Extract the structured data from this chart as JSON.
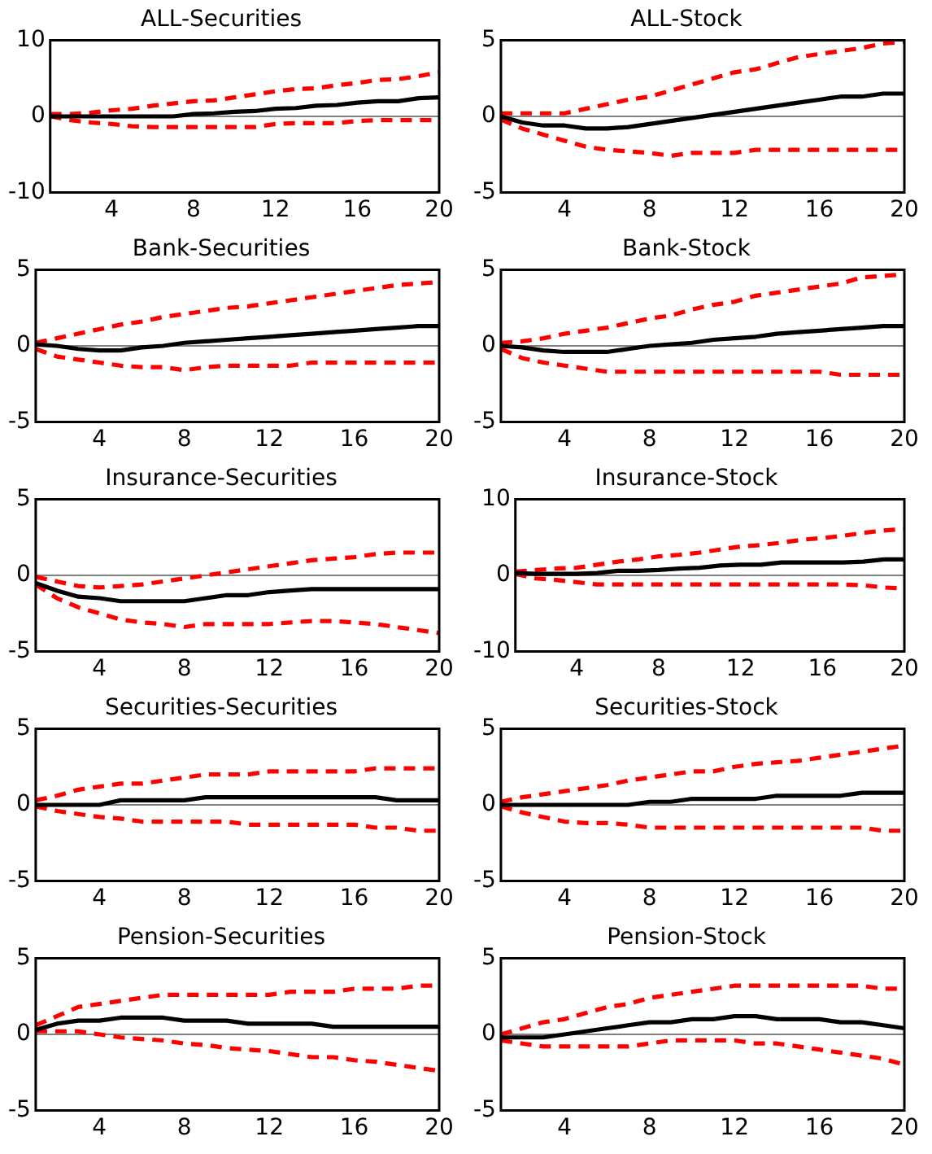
{
  "chart_data": [
    {
      "type": "line",
      "title": "ALL-Securities",
      "x": [
        1,
        2,
        3,
        4,
        5,
        6,
        7,
        8,
        9,
        10,
        11,
        12,
        13,
        14,
        15,
        16,
        17,
        18,
        19,
        20
      ],
      "xlim": [
        1,
        20
      ],
      "xticks": [
        4,
        8,
        12,
        16,
        20
      ],
      "ylim": [
        -10,
        10
      ],
      "yticks": [
        -10,
        0,
        10
      ],
      "grid": false,
      "legend": false,
      "marker": "none",
      "ref_lines": [
        {
          "axis": "y",
          "value": 0,
          "color": "#808080"
        }
      ],
      "series": [
        {
          "color": "#000000",
          "line_style": "solid",
          "values": [
            0,
            0,
            0,
            0,
            0,
            0,
            0,
            0.3,
            0.4,
            0.6,
            0.7,
            1,
            1.1,
            1.4,
            1.5,
            1.8,
            2,
            2,
            2.4,
            2.5
          ]
        },
        {
          "color": "#ff0000",
          "line_style": "dashed",
          "values": [
            0.3,
            0.3,
            0.5,
            0.8,
            1,
            1.4,
            1.7,
            2,
            2.1,
            2.5,
            2.9,
            3.3,
            3.6,
            3.7,
            4.1,
            4.4,
            4.8,
            4.9,
            5.3,
            5.8
          ]
        },
        {
          "color": "#ff0000",
          "line_style": "dashed",
          "values": [
            0,
            -0.5,
            -0.8,
            -1,
            -1.3,
            -1.4,
            -1.4,
            -1.4,
            -1.4,
            -1.4,
            -1.4,
            -1,
            -0.9,
            -0.9,
            -0.9,
            -0.6,
            -0.5,
            -0.5,
            -0.5,
            -0.5
          ]
        }
      ]
    },
    {
      "type": "line",
      "title": "ALL-Stock",
      "x": [
        1,
        2,
        3,
        4,
        5,
        6,
        7,
        8,
        9,
        10,
        11,
        12,
        13,
        14,
        15,
        16,
        17,
        18,
        19,
        20
      ],
      "xlim": [
        1,
        20
      ],
      "xticks": [
        4,
        8,
        12,
        16,
        20
      ],
      "ylim": [
        -5,
        5
      ],
      "yticks": [
        -5,
        0,
        5
      ],
      "grid": false,
      "legend": false,
      "marker": "none",
      "ref_lines": [
        {
          "axis": "y",
          "value": 0,
          "color": "#808080"
        }
      ],
      "series": [
        {
          "color": "#000000",
          "line_style": "solid",
          "values": [
            0,
            -0.4,
            -0.6,
            -0.6,
            -0.8,
            -0.8,
            -0.7,
            -0.5,
            -0.3,
            -0.1,
            0.1,
            0.3,
            0.5,
            0.7,
            0.9,
            1.1,
            1.3,
            1.3,
            1.5,
            1.5
          ]
        },
        {
          "color": "#ff0000",
          "line_style": "dashed",
          "values": [
            0.2,
            0.2,
            0.2,
            0.2,
            0.5,
            0.8,
            1.1,
            1.3,
            1.7,
            2.1,
            2.5,
            2.9,
            3.1,
            3.5,
            3.9,
            4.1,
            4.3,
            4.5,
            4.8,
            4.9
          ]
        },
        {
          "color": "#ff0000",
          "line_style": "dashed",
          "values": [
            -0.2,
            -0.8,
            -1.2,
            -1.6,
            -2,
            -2.2,
            -2.3,
            -2.4,
            -2.6,
            -2.4,
            -2.4,
            -2.4,
            -2.2,
            -2.2,
            -2.2,
            -2.2,
            -2.2,
            -2.2,
            -2.2,
            -2.2
          ]
        }
      ]
    },
    {
      "type": "line",
      "title": "Bank-Securities",
      "x": [
        1,
        2,
        3,
        4,
        5,
        6,
        7,
        8,
        9,
        10,
        11,
        12,
        13,
        14,
        15,
        16,
        17,
        18,
        19,
        20
      ],
      "xlim": [
        1,
        20
      ],
      "xticks": [
        4,
        8,
        12,
        16,
        20
      ],
      "ylim": [
        -5,
        5
      ],
      "yticks": [
        -5,
        0,
        5
      ],
      "grid": false,
      "legend": false,
      "marker": "none",
      "ref_lines": [
        {
          "axis": "y",
          "value": 0,
          "color": "#808080"
        }
      ],
      "series": [
        {
          "color": "#000000",
          "line_style": "solid",
          "values": [
            0.1,
            0,
            -0.2,
            -0.3,
            -0.3,
            -0.1,
            0,
            0.2,
            0.3,
            0.4,
            0.5,
            0.6,
            0.7,
            0.8,
            0.9,
            1,
            1.1,
            1.2,
            1.3,
            1.3
          ]
        },
        {
          "color": "#ff0000",
          "line_style": "dashed",
          "values": [
            0.2,
            0.5,
            0.8,
            1.1,
            1.4,
            1.6,
            1.9,
            2.1,
            2.3,
            2.5,
            2.6,
            2.8,
            3,
            3.2,
            3.4,
            3.6,
            3.8,
            4,
            4.1,
            4.2
          ]
        },
        {
          "color": "#ff0000",
          "line_style": "dashed",
          "values": [
            -0.2,
            -0.7,
            -0.9,
            -1.1,
            -1.3,
            -1.4,
            -1.4,
            -1.6,
            -1.4,
            -1.3,
            -1.3,
            -1.3,
            -1.3,
            -1.1,
            -1.1,
            -1.1,
            -1.1,
            -1.1,
            -1.1,
            -1.1
          ]
        }
      ]
    },
    {
      "type": "line",
      "title": "Bank-Stock",
      "x": [
        1,
        2,
        3,
        4,
        5,
        6,
        7,
        8,
        9,
        10,
        11,
        12,
        13,
        14,
        15,
        16,
        17,
        18,
        19,
        20
      ],
      "xlim": [
        1,
        20
      ],
      "xticks": [
        4,
        8,
        12,
        16,
        20
      ],
      "ylim": [
        -5,
        5
      ],
      "yticks": [
        -5,
        0,
        5
      ],
      "grid": false,
      "legend": false,
      "marker": "none",
      "ref_lines": [
        {
          "axis": "y",
          "value": 0,
          "color": "#808080"
        }
      ],
      "series": [
        {
          "color": "#000000",
          "line_style": "solid",
          "values": [
            0,
            -0.1,
            -0.3,
            -0.4,
            -0.4,
            -0.4,
            -0.2,
            0,
            0.1,
            0.2,
            0.4,
            0.5,
            0.6,
            0.8,
            0.9,
            1,
            1.1,
            1.2,
            1.3,
            1.3
          ]
        },
        {
          "color": "#ff0000",
          "line_style": "dashed",
          "values": [
            0.2,
            0.3,
            0.5,
            0.8,
            1,
            1.2,
            1.5,
            1.8,
            2,
            2.4,
            2.7,
            2.9,
            3.3,
            3.5,
            3.7,
            3.9,
            4.1,
            4.5,
            4.6,
            4.7
          ]
        },
        {
          "color": "#ff0000",
          "line_style": "dashed",
          "values": [
            -0.2,
            -0.8,
            -1.1,
            -1.3,
            -1.5,
            -1.7,
            -1.7,
            -1.7,
            -1.7,
            -1.7,
            -1.7,
            -1.7,
            -1.7,
            -1.7,
            -1.7,
            -1.7,
            -1.9,
            -1.9,
            -1.9,
            -1.9
          ]
        }
      ]
    },
    {
      "type": "line",
      "title": "Insurance-Securities",
      "x": [
        1,
        2,
        3,
        4,
        5,
        6,
        7,
        8,
        9,
        10,
        11,
        12,
        13,
        14,
        15,
        16,
        17,
        18,
        19,
        20
      ],
      "xlim": [
        1,
        20
      ],
      "xticks": [
        4,
        8,
        12,
        16,
        20
      ],
      "ylim": [
        -5,
        5
      ],
      "yticks": [
        -5,
        0,
        5
      ],
      "grid": false,
      "legend": false,
      "marker": "none",
      "ref_lines": [
        {
          "axis": "y",
          "value": 0,
          "color": "#808080"
        }
      ],
      "series": [
        {
          "color": "#000000",
          "line_style": "solid",
          "values": [
            -0.5,
            -1,
            -1.4,
            -1.5,
            -1.7,
            -1.7,
            -1.7,
            -1.7,
            -1.5,
            -1.3,
            -1.3,
            -1.1,
            -1,
            -0.9,
            -0.9,
            -0.9,
            -0.9,
            -0.9,
            -0.9,
            -0.9
          ]
        },
        {
          "color": "#ff0000",
          "line_style": "dashed",
          "values": [
            -0.1,
            -0.4,
            -0.7,
            -0.8,
            -0.7,
            -0.6,
            -0.4,
            -0.2,
            0,
            0.2,
            0.4,
            0.6,
            0.8,
            1,
            1.1,
            1.2,
            1.4,
            1.5,
            1.5,
            1.5
          ]
        },
        {
          "color": "#ff0000",
          "line_style": "dashed",
          "values": [
            -0.6,
            -1.5,
            -2.1,
            -2.5,
            -2.9,
            -3.1,
            -3.2,
            -3.4,
            -3.2,
            -3.2,
            -3.2,
            -3.2,
            -3.1,
            -3,
            -3,
            -3.1,
            -3.2,
            -3.4,
            -3.6,
            -3.8
          ]
        }
      ]
    },
    {
      "type": "line",
      "title": "Insurance-Stock",
      "x": [
        1,
        2,
        3,
        4,
        5,
        6,
        7,
        8,
        9,
        10,
        11,
        12,
        13,
        14,
        15,
        16,
        17,
        18,
        19,
        20
      ],
      "xlim": [
        1,
        20
      ],
      "xticks": [
        4,
        8,
        12,
        16,
        20
      ],
      "ylim": [
        -10,
        10
      ],
      "yticks": [
        -10,
        0,
        10
      ],
      "grid": false,
      "legend": false,
      "marker": "none",
      "ref_lines": [
        {
          "axis": "y",
          "value": 0,
          "color": "#808080"
        }
      ],
      "series": [
        {
          "color": "#000000",
          "line_style": "solid",
          "values": [
            0.3,
            0.2,
            0.2,
            0.2,
            0.3,
            0.6,
            0.6,
            0.7,
            0.9,
            1,
            1.3,
            1.4,
            1.4,
            1.7,
            1.7,
            1.7,
            1.7,
            1.8,
            2.1,
            2.1
          ]
        },
        {
          "color": "#ff0000",
          "line_style": "dashed",
          "values": [
            0.5,
            0.7,
            0.9,
            1,
            1.4,
            1.8,
            2.1,
            2.5,
            2.7,
            3,
            3.4,
            3.8,
            4,
            4.3,
            4.7,
            4.9,
            5.2,
            5.6,
            5.9,
            6.1
          ]
        },
        {
          "color": "#ff0000",
          "line_style": "dashed",
          "values": [
            0.2,
            -0.4,
            -0.6,
            -0.9,
            -1.2,
            -1.2,
            -1.2,
            -1.2,
            -1.2,
            -1.2,
            -1.2,
            -1.2,
            -1.2,
            -1.2,
            -1.2,
            -1.2,
            -1.2,
            -1.3,
            -1.6,
            -1.7
          ]
        }
      ]
    },
    {
      "type": "line",
      "title": "Securities-Securities",
      "x": [
        1,
        2,
        3,
        4,
        5,
        6,
        7,
        8,
        9,
        10,
        11,
        12,
        13,
        14,
        15,
        16,
        17,
        18,
        19,
        20
      ],
      "xlim": [
        1,
        20
      ],
      "xticks": [
        4,
        8,
        12,
        16,
        20
      ],
      "ylim": [
        -5,
        5
      ],
      "yticks": [
        -5,
        0,
        5
      ],
      "grid": false,
      "legend": false,
      "marker": "none",
      "ref_lines": [
        {
          "axis": "y",
          "value": 0,
          "color": "#808080"
        }
      ],
      "series": [
        {
          "color": "#000000",
          "line_style": "solid",
          "values": [
            0,
            0,
            0,
            0,
            0.3,
            0.3,
            0.3,
            0.3,
            0.5,
            0.5,
            0.5,
            0.5,
            0.5,
            0.5,
            0.5,
            0.5,
            0.5,
            0.3,
            0.3,
            0.3
          ]
        },
        {
          "color": "#ff0000",
          "line_style": "dashed",
          "values": [
            0.3,
            0.6,
            1,
            1.2,
            1.4,
            1.4,
            1.6,
            1.8,
            2,
            2,
            2,
            2.2,
            2.2,
            2.2,
            2.2,
            2.2,
            2.4,
            2.4,
            2.4,
            2.4
          ]
        },
        {
          "color": "#ff0000",
          "line_style": "dashed",
          "values": [
            -0.1,
            -0.4,
            -0.6,
            -0.8,
            -0.9,
            -1.1,
            -1.1,
            -1.1,
            -1.1,
            -1.1,
            -1.3,
            -1.3,
            -1.3,
            -1.3,
            -1.3,
            -1.3,
            -1.5,
            -1.5,
            -1.7,
            -1.7
          ]
        }
      ]
    },
    {
      "type": "line",
      "title": "Securities-Stock",
      "x": [
        1,
        2,
        3,
        4,
        5,
        6,
        7,
        8,
        9,
        10,
        11,
        12,
        13,
        14,
        15,
        16,
        17,
        18,
        19,
        20
      ],
      "xlim": [
        1,
        20
      ],
      "xticks": [
        4,
        8,
        12,
        16,
        20
      ],
      "ylim": [
        -5,
        5
      ],
      "yticks": [
        -5,
        0,
        5
      ],
      "grid": false,
      "legend": false,
      "marker": "none",
      "ref_lines": [
        {
          "axis": "y",
          "value": 0,
          "color": "#808080"
        }
      ],
      "series": [
        {
          "color": "#000000",
          "line_style": "solid",
          "values": [
            0,
            0,
            0,
            0,
            0,
            0,
            0,
            0.2,
            0.2,
            0.4,
            0.4,
            0.4,
            0.4,
            0.6,
            0.6,
            0.6,
            0.6,
            0.8,
            0.8,
            0.8
          ]
        },
        {
          "color": "#ff0000",
          "line_style": "dashed",
          "values": [
            0.2,
            0.5,
            0.7,
            0.9,
            1.1,
            1.3,
            1.6,
            1.8,
            2,
            2.2,
            2.2,
            2.5,
            2.7,
            2.8,
            2.9,
            3.1,
            3.3,
            3.5,
            3.7,
            3.9
          ]
        },
        {
          "color": "#ff0000",
          "line_style": "dashed",
          "values": [
            -0.1,
            -0.5,
            -0.8,
            -1.1,
            -1.2,
            -1.2,
            -1.3,
            -1.5,
            -1.5,
            -1.5,
            -1.5,
            -1.5,
            -1.5,
            -1.5,
            -1.5,
            -1.5,
            -1.5,
            -1.5,
            -1.7,
            -1.7
          ]
        }
      ]
    },
    {
      "type": "line",
      "title": "Pension-Securities",
      "x": [
        1,
        2,
        3,
        4,
        5,
        6,
        7,
        8,
        9,
        10,
        11,
        12,
        13,
        14,
        15,
        16,
        17,
        18,
        19,
        20
      ],
      "xlim": [
        1,
        20
      ],
      "xticks": [
        4,
        8,
        12,
        16,
        20
      ],
      "ylim": [
        -5,
        5
      ],
      "yticks": [
        -5,
        0,
        5
      ],
      "grid": false,
      "legend": false,
      "marker": "none",
      "ref_lines": [
        {
          "axis": "y",
          "value": 0,
          "color": "#808080"
        }
      ],
      "series": [
        {
          "color": "#000000",
          "line_style": "solid",
          "values": [
            0.3,
            0.7,
            0.9,
            0.9,
            1.1,
            1.1,
            1.1,
            0.9,
            0.9,
            0.9,
            0.7,
            0.7,
            0.7,
            0.7,
            0.5,
            0.5,
            0.5,
            0.5,
            0.5,
            0.5
          ]
        },
        {
          "color": "#ff0000",
          "line_style": "dashed",
          "values": [
            0.6,
            1.2,
            1.8,
            2,
            2.2,
            2.4,
            2.6,
            2.6,
            2.6,
            2.6,
            2.6,
            2.6,
            2.8,
            2.8,
            2.8,
            3,
            3,
            3,
            3.2,
            3.2
          ]
        },
        {
          "color": "#ff0000",
          "line_style": "dashed",
          "values": [
            0.2,
            0.2,
            0.2,
            0,
            -0.2,
            -0.3,
            -0.4,
            -0.6,
            -0.7,
            -0.9,
            -1,
            -1.1,
            -1.3,
            -1.5,
            -1.5,
            -1.7,
            -1.8,
            -2,
            -2.2,
            -2.4
          ]
        }
      ]
    },
    {
      "type": "line",
      "title": "Pension-Stock",
      "x": [
        1,
        2,
        3,
        4,
        5,
        6,
        7,
        8,
        9,
        10,
        11,
        12,
        13,
        14,
        15,
        16,
        17,
        18,
        19,
        20
      ],
      "xlim": [
        1,
        20
      ],
      "xticks": [
        4,
        8,
        12,
        16,
        20
      ],
      "ylim": [
        -5,
        5
      ],
      "yticks": [
        -5,
        0,
        5
      ],
      "grid": false,
      "legend": false,
      "marker": "none",
      "ref_lines": [
        {
          "axis": "y",
          "value": 0,
          "color": "#808080"
        }
      ],
      "series": [
        {
          "color": "#000000",
          "line_style": "solid",
          "values": [
            -0.2,
            -0.2,
            -0.2,
            0,
            0.2,
            0.4,
            0.6,
            0.8,
            0.8,
            1,
            1,
            1.2,
            1.2,
            1,
            1,
            1,
            0.8,
            0.8,
            0.6,
            0.4
          ]
        },
        {
          "color": "#ff0000",
          "line_style": "dashed",
          "values": [
            0,
            0.4,
            0.8,
            1,
            1.4,
            1.8,
            2,
            2.4,
            2.6,
            2.8,
            3,
            3.2,
            3.2,
            3.2,
            3.2,
            3.2,
            3.2,
            3.2,
            3,
            3
          ]
        },
        {
          "color": "#ff0000",
          "line_style": "dashed",
          "values": [
            -0.4,
            -0.6,
            -0.8,
            -0.8,
            -0.8,
            -0.8,
            -0.8,
            -0.6,
            -0.4,
            -0.4,
            -0.4,
            -0.4,
            -0.6,
            -0.6,
            -0.8,
            -1,
            -1.2,
            -1.4,
            -1.6,
            -2
          ]
        }
      ]
    }
  ]
}
